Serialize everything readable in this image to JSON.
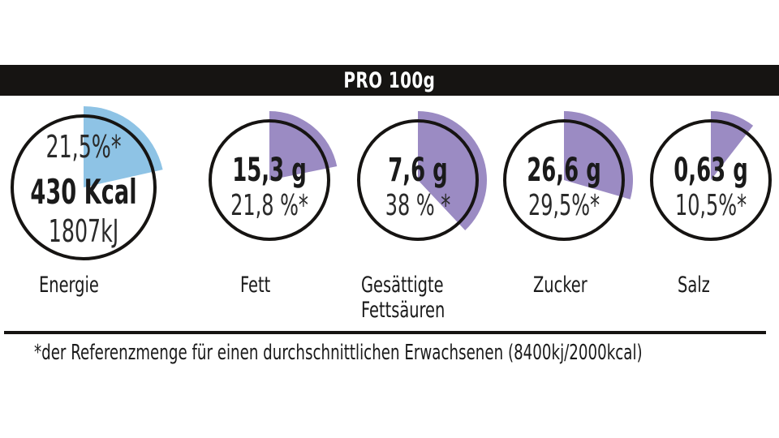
{
  "header": {
    "title": "PRO 100g"
  },
  "colors": {
    "energy": "#8ec3e5",
    "nutrient": "#9b8bc3",
    "ring": "#161412",
    "bar": "#161412"
  },
  "nutrients": [
    {
      "label": "Energie",
      "lines": [
        "21,5%*",
        "430 Kcal",
        "1807kJ"
      ],
      "percent": 21.5
    },
    {
      "label": "Fett",
      "amount": "15,3 g",
      "pct": "21,8 %*",
      "percent": 21.8
    },
    {
      "label": "Gesättigte\nFettsäuren",
      "amount": "7,6 g",
      "pct": "38 % *",
      "percent": 38
    },
    {
      "label": "Zucker",
      "amount": "26,6 g",
      "pct": "29,5%*",
      "percent": 29.5
    },
    {
      "label": "Salz",
      "amount": "0,63 g",
      "pct": "10,5%*",
      "percent": 10.5
    }
  ],
  "footnote": "*der Referenzmenge für einen durchschnittlichen Erwachsenen (8400kj/2000kcal)"
}
